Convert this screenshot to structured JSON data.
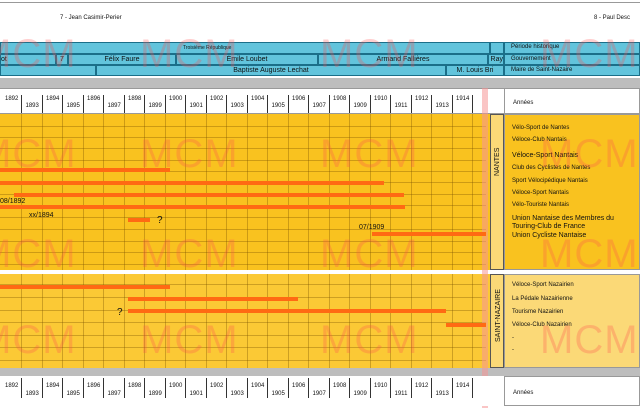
{
  "presidents": {
    "left": "7 - Jean Casimir-Perier",
    "right": "8 - Paul Desc"
  },
  "header_rows": {
    "periode": {
      "left_num": "",
      "left_text": "",
      "main": "Troisième République",
      "right_label": "Période historique"
    },
    "gouvernement": {
      "cells": [
        "ot",
        "7",
        "Félix Faure",
        "Émile Loubet",
        "Armand Fallières",
        "Ray"
      ],
      "right_label": "Gouvernement"
    },
    "maire": {
      "cells": [
        "Baptiste Auguste Lechat",
        "M. Louis Bri"
      ],
      "right_label": "Maire de Saint-Nazaire"
    }
  },
  "years_top": [
    "1892",
    "1893",
    "1894",
    "1895",
    "1896",
    "1897",
    "1898",
    "1899",
    "1900",
    "1901",
    "1902",
    "1903",
    "1904",
    "1905",
    "1906",
    "1907",
    "1908",
    "1909",
    "1910",
    "1911",
    "1912",
    "1913",
    "1914"
  ],
  "years_bottom": [
    "1892",
    "1893",
    "1894",
    "1895",
    "1896",
    "1897",
    "1898",
    "1899",
    "1900",
    "1901",
    "1902",
    "1903",
    "1904",
    "1905",
    "1906",
    "1907",
    "1908",
    "1909",
    "1910",
    "1911",
    "1912",
    "1913",
    "1914"
  ],
  "annees_label": "Années",
  "regions": {
    "nantes": "NANTES",
    "saint_nazaire": "SAINT-NAZAIRE"
  },
  "clubs_nantes": [
    "Vélo-Sport de Nantes",
    "Véloce-Club Nantais",
    "Véloce-Sport Nantais",
    "Club des Cyclistes de Nantes",
    "Sport Vélocipédique Nantais",
    "Véloce-Sport Nantais",
    "Vélo-Touriste Nantais",
    "Union Nantaise des Membres du Touring-Club de France",
    "Union Cycliste Nantaise"
  ],
  "clubs_saint_nazaire": [
    "Véloce-Sport Nazairien",
    "La Pédale Nazairienne",
    "Tourisme Nazairien",
    "Véloce-Club Nazairien",
    "-",
    "-"
  ],
  "annotations": {
    "a1": "08/1892",
    "a2": "xx/1894",
    "a3": "07/1909",
    "q": "?"
  },
  "watermark": "MCM",
  "colors": {
    "header": "#62c4dc",
    "nantes_bg": "#f9c21f",
    "nazaire_bg": "#f9c21f",
    "bar": "#ff6a13",
    "today_line": "#f5a0a0"
  }
}
